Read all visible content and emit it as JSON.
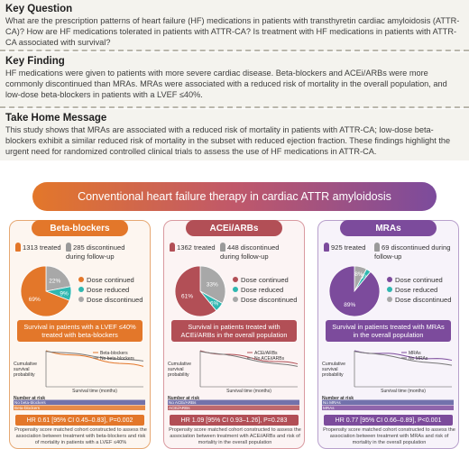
{
  "sections": {
    "question": {
      "title": "Key Question",
      "body": "What are the prescription patterns of heart failure (HF) medications in patients with transthyretin cardiac amyloidosis (ATTR-CA)? How are HF medications tolerated in patients with ATTR-CA? Is treatment with HF medications in patients with ATTR-CA associated with survival?"
    },
    "finding": {
      "title": "Key Finding",
      "body": "HF medications were given to patients with more severe cardiac disease.  Beta-blockers and ACEi/ARBs were more commonly discontinued than MRAs. MRAs were associated with a reduced risk of mortality in the overall population, and low-dose beta-blockers in patients with a LVEF ≤40%."
    },
    "message": {
      "title": "Take Home Message",
      "body": "This study shows that MRAs are associated with a reduced risk of mortality in patients with ATTR-CA; low-dose beta-blockers exhibit a similar reduced risk of mortality in the subset with reduced ejection fraction. These findings highlight the urgent need for randomized controlled clinical trials to assess the use of HF medications in ATTR-CA."
    }
  },
  "figure": {
    "banner": "Conventional heart failure therapy in cardiac ATTR amyloidosis",
    "legend_labels": [
      "Dose continued",
      "Dose reduced",
      "Dose discontinued"
    ],
    "km_ylabel": "Cumulative survival probability",
    "km_xlabel": "Survival time (months)",
    "km_risk_label": "Number at risk",
    "colors": {
      "continued": "#e3772a",
      "reduced": "#2fb7b0",
      "discontinued": "#a8a8a8"
    },
    "panels": [
      {
        "id": "bb",
        "name": "Beta-blockers",
        "treated": "1313 treated",
        "discontinued": "285 discontinued during follow-up",
        "pie": {
          "continued": 69,
          "reduced": 9,
          "discontinued": 22,
          "color": "#e3772a",
          "labels": [
            "69%",
            "9%",
            "22%"
          ]
        },
        "survival_title": "Survival in patients with a LVEF ≤40% treated with beta-blockers",
        "km_legend": [
          "Beta-blockers",
          "No beta-blockers"
        ],
        "risk_rows": [
          "No beta-blockers",
          "Beta-blockers"
        ],
        "hr": "HR 0.61 [95% CI 0.45–0.83], P=0.002",
        "note": "Propensity score matched cohort constructed to assess the association between treatment with beta-blockers and risk of mortality in patients with a LVEF ≤40%"
      },
      {
        "id": "ace",
        "name": "ACEi/ARBs",
        "treated": "1362 treated",
        "discontinued": "448 discontinued during follow-up",
        "pie": {
          "continued": 61,
          "reduced": 6,
          "discontinued": 33,
          "color": "#b24f56",
          "labels": [
            "61%",
            "6%",
            "33%"
          ]
        },
        "survival_title": "Survival in patients treated with ACEi/ARBs in the overall population",
        "km_legend": [
          "ACEi/ARBs",
          "No ACEi/ARBs"
        ],
        "risk_rows": [
          "No ACEi/ARBs",
          "ACEi/ARBs"
        ],
        "hr": "HR 1.09 [95% CI 0.93–1.26], P=0.283",
        "note": "Propensity score matched cohort constructed to assess the association between treatment with ACEi/ARBs and risk of mortality in the overall population"
      },
      {
        "id": "mra",
        "name": "MRAs",
        "treated": "925 treated",
        "discontinued": "69 discontinued during follow-up",
        "pie": {
          "continued": 89,
          "reduced": 3,
          "discontinued": 8,
          "color": "#7c4b9c",
          "labels": [
            "89%",
            "3%",
            "8%"
          ]
        },
        "survival_title": "Survival in patients treated with MRAs in the overall population",
        "km_legend": [
          "MRAs",
          "No MRAs"
        ],
        "risk_rows": [
          "No MRAs",
          "MRAs"
        ],
        "hr": "HR 0.77 [95% CI 0.66–0.89], P<0.001",
        "note": "Propensity score matched cohort constructed to assess the association between treatment with MRAs and risk of mortality in the overall population"
      }
    ]
  }
}
